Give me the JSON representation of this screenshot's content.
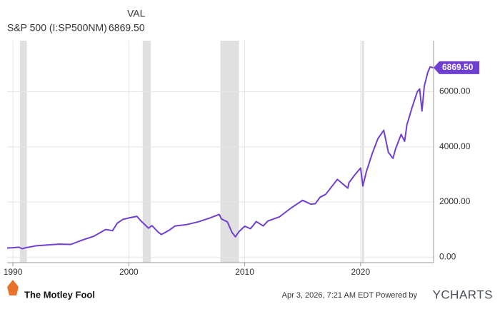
{
  "chart_data": {
    "type": "line",
    "series": [
      {
        "name": "S&P 500 (I:SP500NM)",
        "color": "#6f3fd1",
        "x": [
          1989.5,
          1990,
          1990.5,
          1990.8,
          1991,
          1992,
          1993,
          1994,
          1995,
          1996,
          1997,
          1998,
          1998.6,
          1999,
          1999.5,
          2000,
          2000.7,
          2001,
          2001.7,
          2002,
          2002.5,
          2002.8,
          2003,
          2003.5,
          2004,
          2005,
          2006,
          2007,
          2007.8,
          2008,
          2008.5,
          2008.9,
          2009.2,
          2009.5,
          2010,
          2010.5,
          2011,
          2011.6,
          2012,
          2013,
          2014,
          2015,
          2015.7,
          2016.1,
          2016.5,
          2017,
          2018,
          2018.9,
          2019,
          2019.5,
          2020,
          2020.2,
          2020.5,
          2021,
          2021.5,
          2022,
          2022.4,
          2022.8,
          2023,
          2023.5,
          2023.8,
          2024,
          2024.5,
          2024.9,
          2025.1,
          2025.3,
          2025.5,
          2025.8,
          2026,
          2026.25
        ],
        "values": [
          330,
          340,
          360,
          305,
          330,
          410,
          440,
          470,
          460,
          620,
          760,
          1000,
          960,
          1230,
          1370,
          1420,
          1480,
          1330,
          1050,
          1140,
          920,
          820,
          860,
          980,
          1130,
          1180,
          1280,
          1420,
          1550,
          1380,
          1280,
          900,
          735,
          920,
          1120,
          1030,
          1290,
          1130,
          1310,
          1460,
          1780,
          2060,
          1920,
          1940,
          2170,
          2280,
          2820,
          2500,
          2700,
          2980,
          3230,
          2580,
          3100,
          3750,
          4300,
          4600,
          3800,
          3580,
          3900,
          4450,
          4200,
          4800,
          5500,
          6000,
          6100,
          5300,
          6200,
          6700,
          6900,
          6869.5
        ]
      }
    ],
    "current_value": "6869.50",
    "value_column": "VAL",
    "recessions": [
      [
        1990.6,
        1991.2
      ],
      [
        2001.2,
        2001.9
      ],
      [
        2007.9,
        2009.5
      ],
      [
        2020.1,
        2020.3
      ]
    ],
    "xlim": [
      1989.5,
      2026.3
    ],
    "xticks": [
      1990,
      2000,
      2010,
      2020
    ],
    "ylim": [
      -200,
      7850
    ],
    "yticks": [
      {
        "value": 0,
        "label": "0.00"
      },
      {
        "value": 2000,
        "label": "2000.00"
      },
      {
        "value": 4000,
        "label": "4000.00"
      },
      {
        "value": 6000,
        "label": "6000.00"
      }
    ],
    "grid": true
  },
  "footer": {
    "source": "The Motley Fool",
    "timestamp": "Apr 3, 2026, 7:21 AM EDT Powered by",
    "brand": "YCHARTS"
  }
}
